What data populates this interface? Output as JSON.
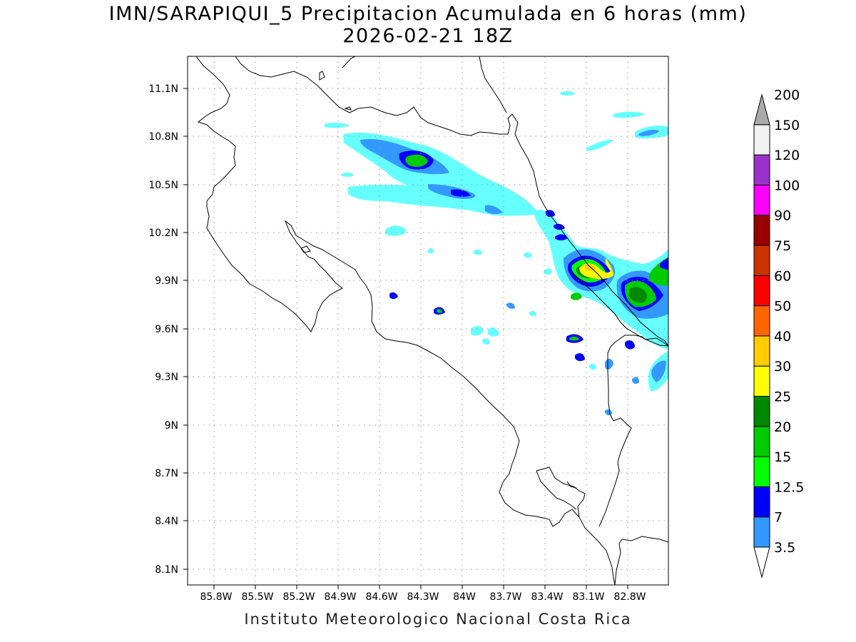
{
  "title_line1": "IMN/SARAPIQUI_5 Precipitacion Acumulada en 6 horas (mm)",
  "title_line2": "2026-02-21 18Z",
  "credit": "Instituto Meteorologico Nacional Costa Rica",
  "map": {
    "lat_ticks": [
      "11.1N",
      "10.8N",
      "10.5N",
      "10.2N",
      "9.9N",
      "9.6N",
      "9.3N",
      "9N",
      "8.7N",
      "8.4N",
      "8.1N"
    ],
    "lon_ticks": [
      "85.8W",
      "85.5W",
      "85.2W",
      "84.9W",
      "84.6W",
      "84.3W",
      "84W",
      "83.7W",
      "83.4W",
      "83.1W",
      "82.8W"
    ]
  },
  "colorbar": {
    "levels": [
      "3.5",
      "7",
      "12.5",
      "15",
      "20",
      "25",
      "30",
      "40",
      "50",
      "60",
      "75",
      "90",
      "100",
      "120",
      "150",
      "200"
    ],
    "colors": [
      "#66ffff",
      "#3399ff",
      "#0000ff",
      "#00ff00",
      "#00cc00",
      "#008800",
      "#ffff00",
      "#ffcc00",
      "#ff6600",
      "#ff0000",
      "#cc3300",
      "#990000",
      "#ff00ff",
      "#9933cc",
      "#f2f2f2",
      "#aaaaaa"
    ]
  }
}
